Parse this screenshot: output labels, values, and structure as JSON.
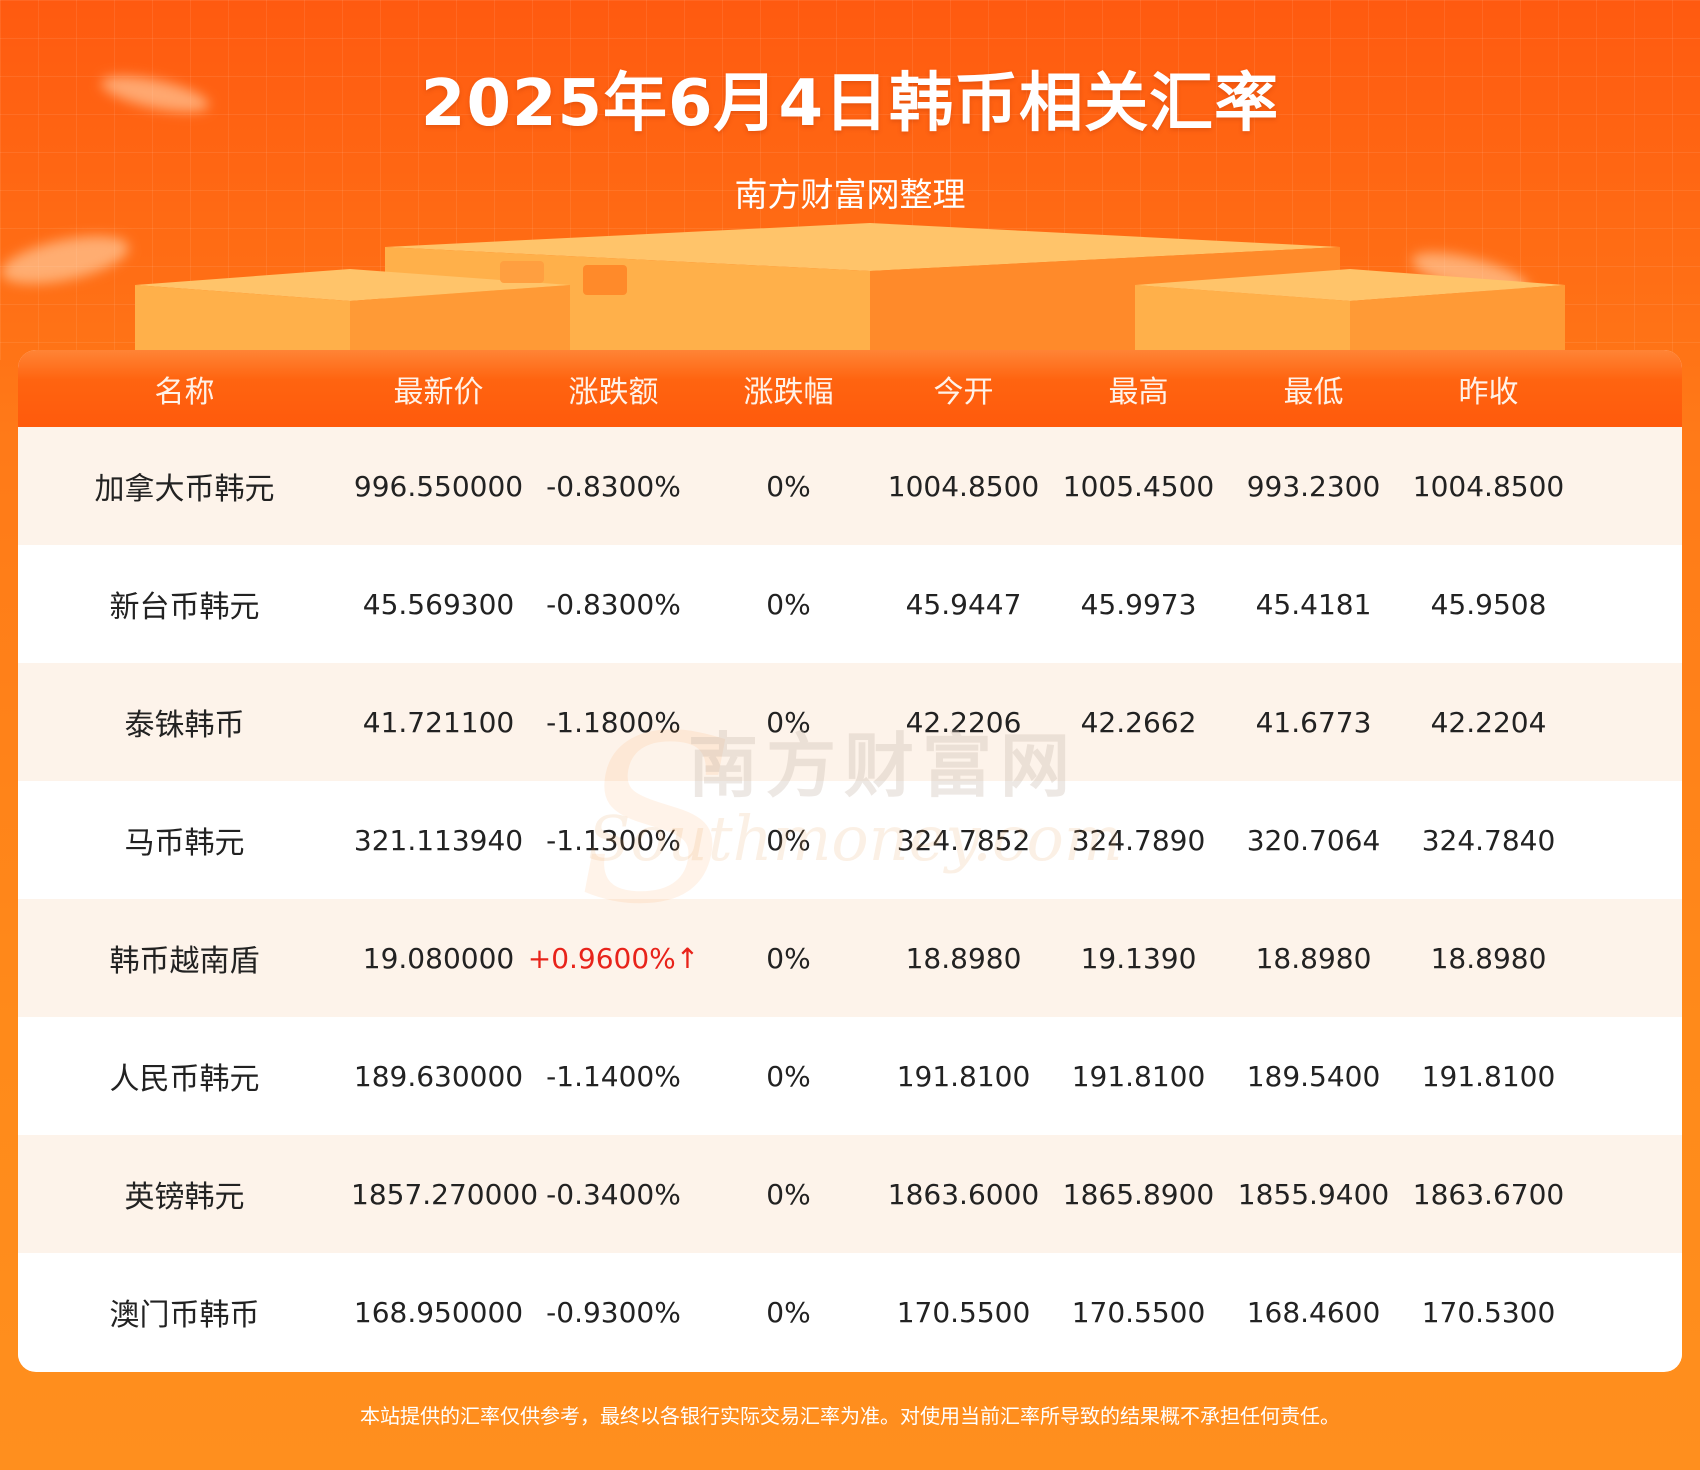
{
  "header": {
    "title": "2025年6月4日韩币相关汇率",
    "subtitle": "南方财富网整理"
  },
  "watermark": {
    "brand_cn": "南方财富网",
    "brand_en": "Southmoney.com"
  },
  "colors": {
    "accent": "#ff5a0c",
    "row_alt": "#fdf3ea",
    "up": "#e8231a"
  },
  "table": {
    "columns": [
      "名称",
      "最新价",
      "涨跌额",
      "涨跌幅",
      "今开",
      "最高",
      "最低",
      "昨收"
    ],
    "rows": [
      {
        "name": "加拿大币韩元",
        "latest": "996.550000",
        "change": "-0.8300%",
        "pct": "0%",
        "open": "1004.8500",
        "high": "1005.4500",
        "low": "993.2300",
        "prev_close": "1004.8500",
        "up": false
      },
      {
        "name": "新台币韩元",
        "latest": "45.569300",
        "change": "-0.8300%",
        "pct": "0%",
        "open": "45.9447",
        "high": "45.9973",
        "low": "45.4181",
        "prev_close": "45.9508",
        "up": false
      },
      {
        "name": "泰铢韩币",
        "latest": "41.721100",
        "change": "-1.1800%",
        "pct": "0%",
        "open": "42.2206",
        "high": "42.2662",
        "low": "41.6773",
        "prev_close": "42.2204",
        "up": false
      },
      {
        "name": "马币韩元",
        "latest": "321.113940",
        "change": "-1.1300%",
        "pct": "0%",
        "open": "324.7852",
        "high": "324.7890",
        "low": "320.7064",
        "prev_close": "324.7840",
        "up": false
      },
      {
        "name": "韩币越南盾",
        "latest": "19.080000",
        "change": "+0.9600%↑",
        "pct": "0%",
        "open": "18.8980",
        "high": "19.1390",
        "low": "18.8980",
        "prev_close": "18.8980",
        "up": true
      },
      {
        "name": "人民币韩元",
        "latest": "189.630000",
        "change": "-1.1400%",
        "pct": "0%",
        "open": "191.8100",
        "high": "191.8100",
        "low": "189.5400",
        "prev_close": "191.8100",
        "up": false
      },
      {
        "name": "英镑韩元",
        "latest": "1857.270000",
        "change": "-0.3400%",
        "pct": "0%",
        "open": "1863.6000",
        "high": "1865.8900",
        "low": "1855.9400",
        "prev_close": "1863.6700",
        "up": false
      },
      {
        "name": "澳门币韩币",
        "latest": "168.950000",
        "change": "-0.9300%",
        "pct": "0%",
        "open": "170.5500",
        "high": "170.5500",
        "low": "168.4600",
        "prev_close": "170.5300",
        "up": false
      }
    ]
  },
  "footer": {
    "disclaimer": "本站提供的汇率仅供参考，最终以各银行实际交易汇率为准。对使用当前汇率所导致的结果概不承担任何责任。"
  }
}
